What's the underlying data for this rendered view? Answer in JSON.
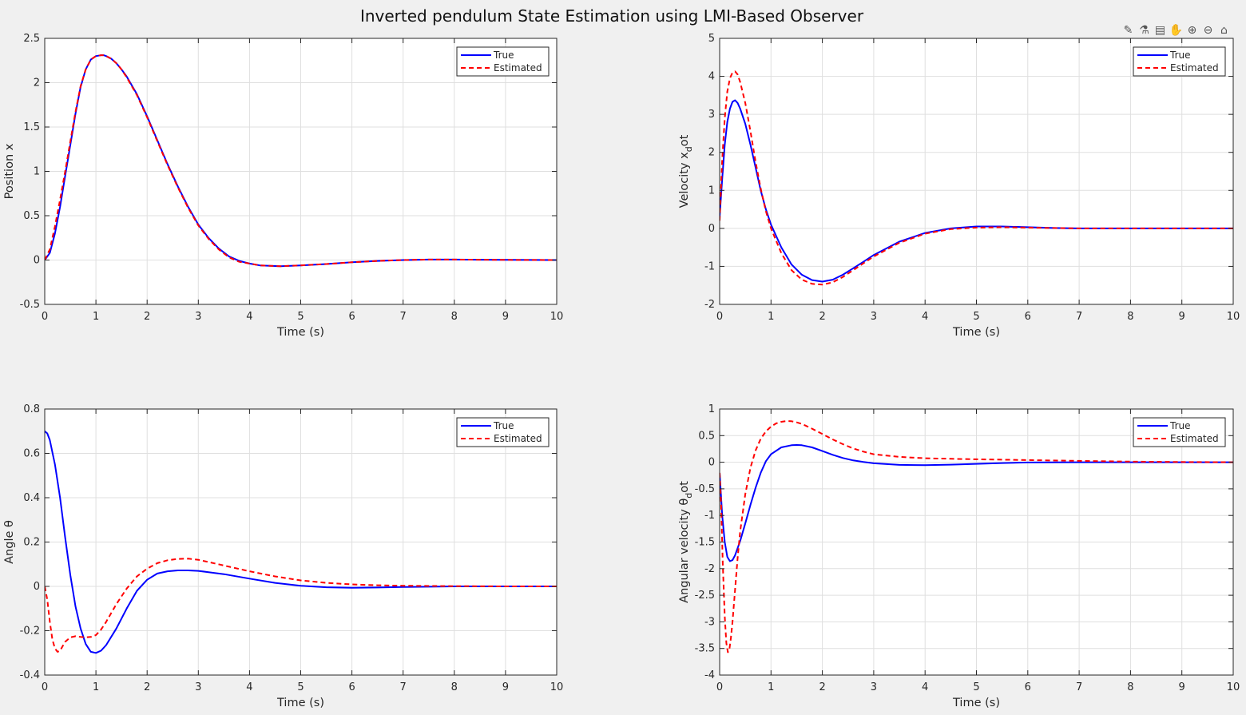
{
  "figure": {
    "title": "Inverted pendulum State Estimation using LMI-Based Observer",
    "background": "#f0f0f0"
  },
  "toolbar": {
    "buttons": [
      {
        "name": "brush-icon",
        "glyph": "✎"
      },
      {
        "name": "datatip-icon",
        "glyph": "⚗"
      },
      {
        "name": "legend-toggle-icon",
        "glyph": "▤"
      },
      {
        "name": "pan-icon",
        "glyph": "✋"
      },
      {
        "name": "zoom-in-icon",
        "glyph": "⊕"
      },
      {
        "name": "zoom-out-icon",
        "glyph": "⊖"
      },
      {
        "name": "home-icon",
        "glyph": "⌂"
      }
    ]
  },
  "style": {
    "true_color": "#0000ff",
    "estimated_color": "#ff0000",
    "grid_color": "#dfdfdf",
    "axes_color": "#262626"
  },
  "chart_data": [
    {
      "type": "line",
      "ylabel": "Position x",
      "xlabel": "Time (s)",
      "xlim": [
        0,
        10
      ],
      "ylim": [
        -0.5,
        2.5
      ],
      "xticks": [
        0,
        1,
        2,
        3,
        4,
        5,
        6,
        7,
        8,
        9,
        10
      ],
      "yticks": [
        -0.5,
        0,
        0.5,
        1,
        1.5,
        2,
        2.5
      ],
      "grid": true,
      "legend_position": "top-right",
      "series": [
        {
          "name": "True",
          "style": "solid",
          "x": [
            0,
            0.1,
            0.2,
            0.3,
            0.4,
            0.5,
            0.6,
            0.7,
            0.8,
            0.9,
            1.0,
            1.1,
            1.15,
            1.2,
            1.3,
            1.4,
            1.5,
            1.6,
            1.8,
            2.0,
            2.2,
            2.4,
            2.6,
            2.8,
            3.0,
            3.2,
            3.4,
            3.6,
            3.8,
            4.0,
            4.2,
            4.4,
            4.6,
            4.8,
            5.0,
            5.5,
            6.0,
            6.5,
            7.0,
            7.5,
            8.0,
            8.5,
            9.0,
            9.5,
            10.0
          ],
          "y": [
            0,
            0.08,
            0.3,
            0.6,
            0.95,
            1.3,
            1.65,
            1.95,
            2.15,
            2.26,
            2.3,
            2.31,
            2.31,
            2.3,
            2.27,
            2.22,
            2.15,
            2.07,
            1.87,
            1.62,
            1.35,
            1.08,
            0.83,
            0.6,
            0.4,
            0.25,
            0.13,
            0.04,
            -0.01,
            -0.04,
            -0.06,
            -0.065,
            -0.07,
            -0.065,
            -0.06,
            -0.045,
            -0.025,
            -0.01,
            0,
            0.005,
            0.005,
            0.004,
            0.002,
            0.001,
            0
          ]
        },
        {
          "name": "Estimated",
          "style": "dashed",
          "x": [
            0,
            0.1,
            0.2,
            0.3,
            0.4,
            0.5,
            0.6,
            0.7,
            0.8,
            0.9,
            1.0,
            1.1,
            1.15,
            1.2,
            1.3,
            1.4,
            1.5,
            1.6,
            1.8,
            2.0,
            2.2,
            2.4,
            2.6,
            2.8,
            3.0,
            3.2,
            3.4,
            3.6,
            3.8,
            4.0,
            4.2,
            4.4,
            4.6,
            4.8,
            5.0,
            5.5,
            6.0,
            6.5,
            7.0,
            7.5,
            8.0,
            8.5,
            9.0,
            9.5,
            10.0
          ],
          "y": [
            0,
            0.12,
            0.38,
            0.68,
            1.0,
            1.34,
            1.67,
            1.96,
            2.15,
            2.26,
            2.3,
            2.31,
            2.31,
            2.3,
            2.27,
            2.22,
            2.15,
            2.06,
            1.86,
            1.61,
            1.34,
            1.07,
            0.82,
            0.59,
            0.39,
            0.24,
            0.12,
            0.03,
            -0.02,
            -0.04,
            -0.06,
            -0.065,
            -0.07,
            -0.065,
            -0.06,
            -0.045,
            -0.025,
            -0.01,
            0,
            0.005,
            0.005,
            0.004,
            0.002,
            0.001,
            0
          ]
        }
      ]
    },
    {
      "type": "line",
      "ylabel": "Velocity x",
      "ylabel_sub": "d",
      "ylabel_tail": "ot",
      "xlabel": "Time (s)",
      "xlim": [
        0,
        10
      ],
      "ylim": [
        -2,
        5
      ],
      "xticks": [
        0,
        1,
        2,
        3,
        4,
        5,
        6,
        7,
        8,
        9,
        10
      ],
      "yticks": [
        -2,
        -1,
        0,
        1,
        2,
        3,
        4,
        5
      ],
      "grid": true,
      "legend_position": "top-right",
      "series": [
        {
          "name": "True",
          "style": "solid",
          "x": [
            0,
            0.05,
            0.1,
            0.15,
            0.2,
            0.25,
            0.3,
            0.35,
            0.4,
            0.5,
            0.6,
            0.7,
            0.8,
            0.9,
            1.0,
            1.2,
            1.4,
            1.6,
            1.8,
            2.0,
            2.2,
            2.4,
            2.6,
            2.8,
            3.0,
            3.5,
            4.0,
            4.5,
            5.0,
            5.5,
            6.0,
            6.5,
            7.0,
            8.0,
            9.0,
            10.0
          ],
          "y": [
            0.3,
            1.3,
            2.2,
            2.8,
            3.15,
            3.33,
            3.37,
            3.3,
            3.15,
            2.75,
            2.2,
            1.6,
            1.0,
            0.5,
            0.1,
            -0.5,
            -0.95,
            -1.22,
            -1.36,
            -1.4,
            -1.35,
            -1.22,
            -1.05,
            -0.88,
            -0.7,
            -0.35,
            -0.12,
            0,
            0.05,
            0.05,
            0.03,
            0.01,
            0,
            0,
            0,
            0
          ]
        },
        {
          "name": "Estimated",
          "style": "dashed",
          "x": [
            0,
            0.05,
            0.1,
            0.15,
            0.2,
            0.25,
            0.3,
            0.35,
            0.4,
            0.5,
            0.6,
            0.7,
            0.8,
            0.9,
            1.0,
            1.2,
            1.4,
            1.6,
            1.8,
            2.0,
            2.2,
            2.4,
            2.6,
            2.8,
            3.0,
            3.5,
            4.0,
            4.5,
            5.0,
            5.5,
            6.0,
            6.5,
            7.0,
            8.0,
            9.0,
            10.0
          ],
          "y": [
            0.2,
            1.8,
            2.9,
            3.6,
            3.95,
            4.1,
            4.13,
            4.05,
            3.85,
            3.3,
            2.55,
            1.75,
            1.05,
            0.45,
            0,
            -0.65,
            -1.1,
            -1.35,
            -1.46,
            -1.48,
            -1.42,
            -1.28,
            -1.1,
            -0.92,
            -0.74,
            -0.38,
            -0.14,
            -0.02,
            0.02,
            0.03,
            0.02,
            0.01,
            0,
            0,
            0,
            0
          ]
        }
      ]
    },
    {
      "type": "line",
      "ylabel": "Angle θ",
      "xlabel": "Time (s)",
      "xlim": [
        0,
        10
      ],
      "ylim": [
        -0.4,
        0.8
      ],
      "xticks": [
        0,
        1,
        2,
        3,
        4,
        5,
        6,
        7,
        8,
        9,
        10
      ],
      "yticks": [
        -0.4,
        -0.2,
        0,
        0.2,
        0.4,
        0.6,
        0.8
      ],
      "grid": true,
      "legend_position": "top-right",
      "series": [
        {
          "name": "True",
          "style": "solid",
          "x": [
            0,
            0.05,
            0.1,
            0.2,
            0.3,
            0.4,
            0.5,
            0.6,
            0.7,
            0.8,
            0.9,
            1.0,
            1.1,
            1.2,
            1.4,
            1.6,
            1.8,
            2.0,
            2.2,
            2.4,
            2.6,
            2.8,
            3.0,
            3.2,
            3.5,
            4.0,
            4.5,
            5.0,
            5.5,
            6.0,
            6.5,
            7.0,
            8.0,
            9.0,
            10.0
          ],
          "y": [
            0.7,
            0.69,
            0.66,
            0.55,
            0.4,
            0.22,
            0.05,
            -0.09,
            -0.19,
            -0.26,
            -0.295,
            -0.3,
            -0.29,
            -0.265,
            -0.19,
            -0.1,
            -0.02,
            0.03,
            0.058,
            0.068,
            0.072,
            0.072,
            0.07,
            0.064,
            0.055,
            0.035,
            0.016,
            0.003,
            -0.004,
            -0.006,
            -0.005,
            -0.003,
            0,
            0,
            0
          ]
        },
        {
          "name": "Estimated",
          "style": "dashed",
          "x": [
            0,
            0.05,
            0.1,
            0.15,
            0.2,
            0.25,
            0.3,
            0.35,
            0.4,
            0.5,
            0.6,
            0.7,
            0.8,
            0.9,
            1.0,
            1.1,
            1.2,
            1.4,
            1.6,
            1.8,
            2.0,
            2.2,
            2.4,
            2.6,
            2.8,
            3.0,
            3.2,
            3.5,
            4.0,
            4.5,
            5.0,
            5.5,
            6.0,
            6.5,
            7.0,
            8.0,
            9.0,
            10.0
          ],
          "y": [
            0,
            -0.06,
            -0.16,
            -0.24,
            -0.28,
            -0.295,
            -0.29,
            -0.27,
            -0.25,
            -0.23,
            -0.225,
            -0.228,
            -0.23,
            -0.228,
            -0.22,
            -0.195,
            -0.16,
            -0.08,
            -0.01,
            0.045,
            0.08,
            0.105,
            0.118,
            0.124,
            0.125,
            0.12,
            0.11,
            0.094,
            0.068,
            0.045,
            0.027,
            0.016,
            0.009,
            0.005,
            0.003,
            0.001,
            0,
            0
          ]
        }
      ]
    },
    {
      "type": "line",
      "ylabel": "Angular velocity θ",
      "ylabel_sub": "d",
      "ylabel_tail": "ot",
      "xlabel": "Time (s)",
      "xlim": [
        0,
        10
      ],
      "ylim": [
        -4,
        1
      ],
      "xticks": [
        0,
        1,
        2,
        3,
        4,
        5,
        6,
        7,
        8,
        9,
        10
      ],
      "yticks": [
        -4,
        -3.5,
        -3,
        -2.5,
        -2,
        -1.5,
        -1,
        -0.5,
        0,
        0.5,
        1
      ],
      "grid": true,
      "legend_position": "top-right",
      "series": [
        {
          "name": "True",
          "style": "solid",
          "x": [
            0,
            0.05,
            0.1,
            0.15,
            0.2,
            0.25,
            0.3,
            0.4,
            0.5,
            0.6,
            0.7,
            0.8,
            0.9,
            1.0,
            1.2,
            1.4,
            1.5,
            1.6,
            1.8,
            2.0,
            2.2,
            2.4,
            2.6,
            2.8,
            3.0,
            3.5,
            4.0,
            4.5,
            5.0,
            5.5,
            6.0,
            7.0,
            8.0,
            9.0,
            10.0
          ],
          "y": [
            -0.2,
            -1.0,
            -1.5,
            -1.78,
            -1.86,
            -1.84,
            -1.75,
            -1.48,
            -1.15,
            -0.8,
            -0.48,
            -0.2,
            0.02,
            0.15,
            0.28,
            0.32,
            0.325,
            0.32,
            0.28,
            0.21,
            0.14,
            0.08,
            0.035,
            0.005,
            -0.02,
            -0.05,
            -0.055,
            -0.045,
            -0.03,
            -0.015,
            -0.005,
            0,
            0,
            0,
            0
          ]
        },
        {
          "name": "Estimated",
          "style": "dashed",
          "x": [
            0,
            0.03,
            0.06,
            0.1,
            0.13,
            0.16,
            0.19,
            0.22,
            0.25,
            0.3,
            0.35,
            0.4,
            0.5,
            0.6,
            0.7,
            0.8,
            0.9,
            1.0,
            1.1,
            1.2,
            1.3,
            1.4,
            1.5,
            1.6,
            1.8,
            2.0,
            2.2,
            2.4,
            2.6,
            2.8,
            3.0,
            3.5,
            4.0,
            4.5,
            5.0,
            6.0,
            7.0,
            8.0,
            9.0,
            10.0
          ],
          "y": [
            -0.2,
            -0.8,
            -1.9,
            -2.9,
            -3.4,
            -3.57,
            -3.52,
            -3.3,
            -3.0,
            -2.4,
            -1.8,
            -1.3,
            -0.6,
            -0.1,
            0.22,
            0.44,
            0.58,
            0.67,
            0.73,
            0.76,
            0.775,
            0.77,
            0.75,
            0.72,
            0.63,
            0.53,
            0.43,
            0.34,
            0.26,
            0.2,
            0.15,
            0.1,
            0.075,
            0.065,
            0.055,
            0.04,
            0.025,
            0.012,
            0.005,
            0
          ]
        }
      ]
    }
  ]
}
